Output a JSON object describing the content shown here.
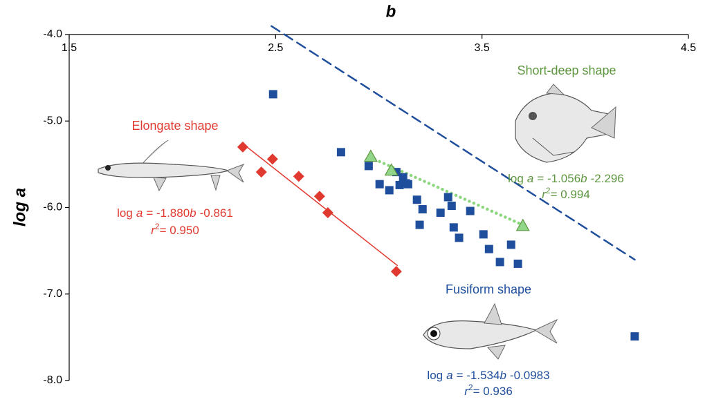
{
  "chart_data": {
    "type": "scatter",
    "x_label": "b",
    "y_label": "log a",
    "xlim": [
      1.5,
      4.5
    ],
    "xticks": [
      1.5,
      2.5,
      3.5,
      4.5
    ],
    "ylim": [
      -8.0,
      -4.0
    ],
    "yticks": [
      {
        "value": -4.0,
        "label": "-4.0"
      },
      {
        "value": -5.0,
        "label": "-5.0"
      },
      {
        "value": -6.0,
        "label": "-6.0"
      },
      {
        "value": -7.0,
        "label": "-7.0"
      },
      {
        "value": -8.0,
        "label": "-8.0"
      }
    ],
    "series": [
      {
        "name": "Elongate shape",
        "color": "#e03a30",
        "marker": "diamond",
        "x": [
          2.341,
          2.431,
          2.485,
          2.612,
          2.713,
          2.753,
          3.085
        ],
        "values": [
          -5.3,
          -5.59,
          -5.44,
          -5.64,
          -5.87,
          -6.06,
          -6.74
        ],
        "fit": {
          "slope": -1.88,
          "intercept": -0.861,
          "x": [
            2.34,
            3.09
          ],
          "style": "solid"
        },
        "equation": [
          "log",
          "a",
          "= -1.880",
          "b",
          "-0.861"
        ],
        "r2": [
          "r",
          "2",
          "= 0.950"
        ]
      },
      {
        "name": "Fusiform shape",
        "color": "#1f4e9c",
        "marker": "square",
        "x": [
          2.488,
          2.817,
          2.951,
          3.004,
          3.051,
          3.085,
          3.101,
          3.118,
          3.131,
          3.142,
          3.185,
          3.212,
          3.198,
          3.299,
          3.336,
          3.353,
          3.363,
          3.389,
          3.443,
          3.507,
          3.534,
          3.587,
          3.641,
          3.674,
          4.24
        ],
        "values": [
          -4.69,
          -5.36,
          -5.52,
          -5.73,
          -5.8,
          -5.59,
          -5.74,
          -5.65,
          -5.72,
          -5.73,
          -5.91,
          -6.02,
          -6.2,
          -6.06,
          -5.88,
          -5.98,
          -6.23,
          -6.35,
          -6.04,
          -6.31,
          -6.48,
          -6.63,
          -6.43,
          -6.65,
          -7.49
        ],
        "fit": {
          "slope": -1.534,
          "intercept": -0.0983,
          "x": [
            2.48,
            4.24
          ],
          "style": "dashed"
        },
        "equation": [
          "log",
          "a",
          "= -1.534",
          "b",
          "-0.0983"
        ],
        "r2": [
          "r",
          "2",
          "= 0.936"
        ]
      },
      {
        "name": "Short-deep shape",
        "color": "#5e9640",
        "marker": "triangle",
        "x": [
          2.961,
          3.061,
          3.698
        ],
        "values": [
          -5.41,
          -5.57,
          -6.21
        ],
        "fit": {
          "slope": -1.056,
          "intercept": -2.296,
          "x": [
            2.96,
            3.7
          ],
          "style": "dotted"
        },
        "equation": [
          "log",
          "a",
          "= -1.056",
          "b",
          "-2.296"
        ],
        "r2": [
          "r",
          "2",
          "= 0.994"
        ]
      }
    ]
  }
}
